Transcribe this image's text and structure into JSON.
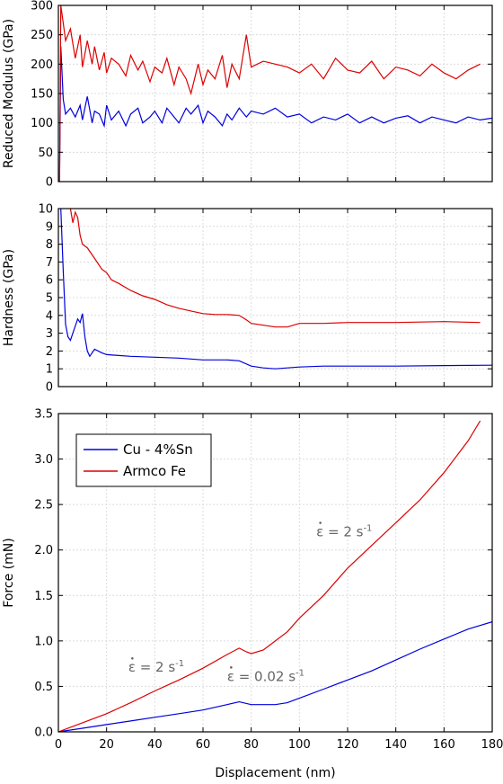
{
  "chart_data": [
    {
      "type": "line",
      "ylabel": "Reduced Modulus (GPa)",
      "xlabel": "",
      "xlim": [
        0,
        180
      ],
      "ylim": [
        0,
        300
      ],
      "yticks": [
        0,
        50,
        100,
        150,
        200,
        250,
        300
      ],
      "xticks": [
        0,
        20,
        40,
        60,
        80,
        100,
        120,
        140,
        160,
        180
      ],
      "show_xticklabels": false,
      "grid": true,
      "series": [
        {
          "name": "Cu - 4%Sn",
          "color": "#0000dd",
          "x": [
            0.5,
            1,
            2,
            3,
            5,
            7,
            9,
            10,
            12,
            14,
            15,
            17,
            19,
            20,
            22,
            25,
            28,
            30,
            33,
            35,
            38,
            40,
            43,
            45,
            48,
            50,
            53,
            55,
            58,
            60,
            62,
            65,
            68,
            70,
            72,
            75,
            78,
            80,
            85,
            90,
            95,
            100,
            105,
            110,
            115,
            120,
            125,
            130,
            135,
            140,
            145,
            150,
            155,
            160,
            165,
            170,
            175,
            180
          ],
          "y": [
            0,
            230,
            140,
            115,
            125,
            110,
            130,
            105,
            145,
            100,
            120,
            115,
            95,
            130,
            105,
            120,
            95,
            115,
            125,
            100,
            110,
            120,
            100,
            125,
            110,
            100,
            125,
            115,
            130,
            100,
            120,
            110,
            95,
            115,
            105,
            125,
            110,
            120,
            115,
            125,
            110,
            115,
            100,
            110,
            105,
            115,
            100,
            110,
            100,
            108,
            112,
            100,
            110,
            105,
            100,
            110,
            105,
            108
          ]
        },
        {
          "name": "Armco Fe",
          "color": "#dd0000",
          "x": [
            0.5,
            1,
            2,
            3,
            5,
            7,
            9,
            10,
            12,
            14,
            15,
            17,
            19,
            20,
            22,
            25,
            28,
            30,
            33,
            35,
            38,
            40,
            43,
            45,
            48,
            50,
            53,
            55,
            58,
            60,
            62,
            65,
            68,
            70,
            72,
            75,
            78,
            80,
            85,
            90,
            95,
            100,
            105,
            110,
            115,
            120,
            125,
            130,
            135,
            140,
            145,
            150,
            155,
            160,
            165,
            170,
            175
          ],
          "y": [
            0,
            300,
            270,
            240,
            260,
            210,
            250,
            195,
            240,
            200,
            230,
            190,
            220,
            185,
            210,
            200,
            180,
            215,
            190,
            205,
            170,
            195,
            185,
            210,
            165,
            195,
            175,
            150,
            200,
            165,
            190,
            175,
            215,
            160,
            200,
            175,
            250,
            195,
            205,
            200,
            195,
            185,
            200,
            175,
            210,
            190,
            185,
            205,
            175,
            195,
            190,
            180,
            200,
            185,
            175,
            190,
            200
          ]
        }
      ]
    },
    {
      "type": "line",
      "ylabel": "Hardness (GPa)",
      "xlabel": "",
      "xlim": [
        0,
        180
      ],
      "ylim": [
        0,
        10
      ],
      "yticks": [
        0,
        1,
        2,
        3,
        4,
        5,
        6,
        7,
        8,
        9,
        10
      ],
      "xticks": [
        0,
        20,
        40,
        60,
        80,
        100,
        120,
        140,
        160,
        180
      ],
      "show_xticklabels": false,
      "grid": true,
      "series": [
        {
          "name": "Cu - 4%Sn",
          "color": "#0000dd",
          "x": [
            1,
            2,
            3,
            4,
            5,
            6,
            8,
            9,
            10,
            11,
            12,
            13,
            15,
            18,
            20,
            25,
            30,
            40,
            50,
            60,
            70,
            75,
            80,
            85,
            90,
            95,
            100,
            110,
            120,
            140,
            160,
            180
          ],
          "y": [
            10,
            6.5,
            3.5,
            2.8,
            2.6,
            3.0,
            3.8,
            3.6,
            4.1,
            2.8,
            2.0,
            1.7,
            2.1,
            1.9,
            1.8,
            1.75,
            1.7,
            1.65,
            1.6,
            1.5,
            1.5,
            1.45,
            1.15,
            1.05,
            1.0,
            1.05,
            1.1,
            1.15,
            1.15,
            1.15,
            1.18,
            1.2
          ]
        },
        {
          "name": "Armco Fe",
          "color": "#dd0000",
          "x": [
            5,
            6,
            7,
            8,
            9,
            10,
            12,
            15,
            18,
            20,
            22,
            25,
            30,
            35,
            40,
            45,
            50,
            55,
            60,
            65,
            70,
            75,
            78,
            80,
            85,
            90,
            95,
            100,
            110,
            120,
            140,
            160,
            175
          ],
          "y": [
            10,
            9.2,
            9.8,
            9.5,
            8.5,
            8.0,
            7.8,
            7.2,
            6.6,
            6.4,
            6.0,
            5.8,
            5.4,
            5.1,
            4.9,
            4.6,
            4.4,
            4.25,
            4.1,
            4.05,
            4.05,
            4.0,
            3.75,
            3.55,
            3.45,
            3.35,
            3.35,
            3.55,
            3.55,
            3.6,
            3.6,
            3.65,
            3.6
          ]
        }
      ]
    },
    {
      "type": "line",
      "ylabel": "Force (mN)",
      "xlabel": "Displacement (nm)",
      "xlim": [
        0,
        180
      ],
      "ylim": [
        0,
        3.5
      ],
      "yticks": [
        0.0,
        0.5,
        1.0,
        1.5,
        2.0,
        2.5,
        3.0,
        3.5
      ],
      "ytick_labels": [
        "0.0",
        "0.5",
        "1.0",
        "1.5",
        "2.0",
        "2.5",
        "3.0",
        "3.5"
      ],
      "xticks": [
        0,
        20,
        40,
        60,
        80,
        100,
        120,
        140,
        160,
        180
      ],
      "show_xticklabels": true,
      "grid": true,
      "legend": "top-left",
      "series": [
        {
          "name": "Cu - 4%Sn",
          "color": "#0000dd",
          "x": [
            0,
            10,
            20,
            30,
            40,
            50,
            60,
            70,
            75,
            80,
            85,
            90,
            95,
            100,
            110,
            120,
            130,
            140,
            150,
            160,
            170,
            180
          ],
          "y": [
            0,
            0.04,
            0.08,
            0.12,
            0.16,
            0.2,
            0.24,
            0.3,
            0.33,
            0.3,
            0.3,
            0.3,
            0.32,
            0.37,
            0.47,
            0.57,
            0.67,
            0.79,
            0.91,
            1.02,
            1.13,
            1.21
          ]
        },
        {
          "name": "Armco Fe",
          "color": "#dd0000",
          "x": [
            0,
            10,
            20,
            30,
            40,
            50,
            60,
            70,
            75,
            78,
            80,
            85,
            90,
            95,
            100,
            110,
            120,
            130,
            140,
            150,
            160,
            170,
            175
          ],
          "y": [
            0,
            0.1,
            0.2,
            0.32,
            0.45,
            0.57,
            0.7,
            0.85,
            0.92,
            0.88,
            0.86,
            0.9,
            1.0,
            1.1,
            1.25,
            1.5,
            1.8,
            2.05,
            2.3,
            2.55,
            2.85,
            3.2,
            3.42
          ]
        }
      ],
      "annotations": [
        {
          "text": "ε = 2 s",
          "sup": "-1",
          "x": 107,
          "y": 2.15
        },
        {
          "text": "ε = 2 s",
          "sup": "-1",
          "x": 29,
          "y": 0.66
        },
        {
          "text": "ε = 0.02 s",
          "sup": "-1",
          "x": 70,
          "y": 0.56
        }
      ]
    }
  ]
}
